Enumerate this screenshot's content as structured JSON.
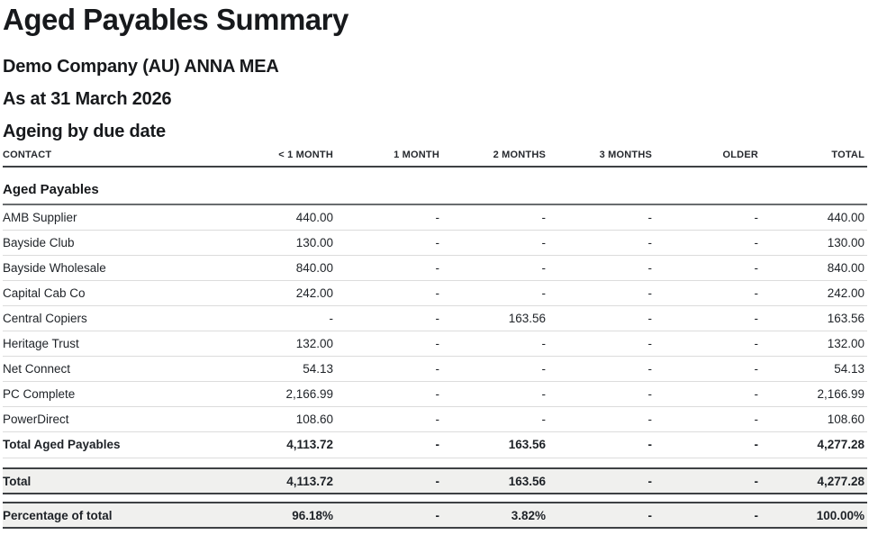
{
  "report": {
    "title": "Aged Payables Summary",
    "company": "Demo Company (AU) ANNA MEA",
    "as_at": "As at 31 March 2026",
    "ageing_basis": "Ageing by due date"
  },
  "table": {
    "columns": [
      "CONTACT",
      "< 1 MONTH",
      "1 MONTH",
      "2 MONTHS",
      "3 MONTHS",
      "OLDER",
      "TOTAL"
    ],
    "section": "Aged Payables",
    "rows": [
      {
        "contact": "AMB Supplier",
        "values": [
          "440.00",
          "-",
          "-",
          "-",
          "-",
          "440.00"
        ]
      },
      {
        "contact": "Bayside Club",
        "values": [
          "130.00",
          "-",
          "-",
          "-",
          "-",
          "130.00"
        ]
      },
      {
        "contact": "Bayside Wholesale",
        "values": [
          "840.00",
          "-",
          "-",
          "-",
          "-",
          "840.00"
        ]
      },
      {
        "contact": "Capital Cab Co",
        "values": [
          "242.00",
          "-",
          "-",
          "-",
          "-",
          "242.00"
        ]
      },
      {
        "contact": "Central Copiers",
        "values": [
          "-",
          "-",
          "163.56",
          "-",
          "-",
          "163.56"
        ]
      },
      {
        "contact": "Heritage Trust",
        "values": [
          "132.00",
          "-",
          "-",
          "-",
          "-",
          "132.00"
        ]
      },
      {
        "contact": "Net Connect",
        "values": [
          "54.13",
          "-",
          "-",
          "-",
          "-",
          "54.13"
        ]
      },
      {
        "contact": "PC Complete",
        "values": [
          "2,166.99",
          "-",
          "-",
          "-",
          "-",
          "2,166.99"
        ]
      },
      {
        "contact": "PowerDirect",
        "values": [
          "108.60",
          "-",
          "-",
          "-",
          "-",
          "108.60"
        ]
      }
    ],
    "total_aged": {
      "label": "Total Aged Payables",
      "values": [
        "4,113.72",
        "-",
        "163.56",
        "-",
        "-",
        "4,277.28"
      ]
    },
    "total": {
      "label": "Total",
      "values": [
        "4,113.72",
        "-",
        "163.56",
        "-",
        "-",
        "4,277.28"
      ]
    },
    "percentage": {
      "label": "Percentage of total",
      "values": [
        "96.18%",
        "-",
        "3.82%",
        "-",
        "-",
        "100.00%"
      ]
    }
  },
  "colors": {
    "band_background": "#f0f0ee",
    "dark_border": "#3e4144",
    "section_border": "#696c6f",
    "row_divider": "#dcdcdc",
    "text": "#17191c"
  }
}
